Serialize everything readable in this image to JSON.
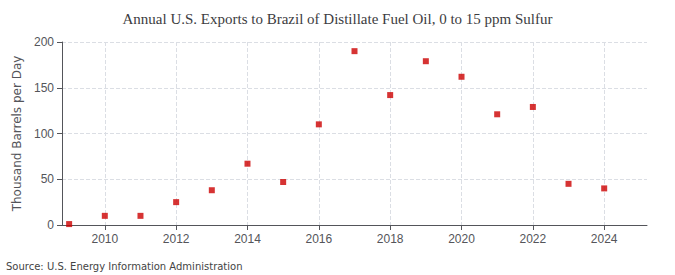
{
  "chart_data": {
    "type": "scatter",
    "title": "Annual U.S. Exports to Brazil of Distillate Fuel Oil, 0 to 15 ppm Sulfur",
    "ylabel": "Thousand Barrels per Day",
    "annotations": [
      "Source: U.S. Energy Information Administration"
    ],
    "x": [
      2009,
      2010,
      2011,
      2012,
      2013,
      2014,
      2015,
      2016,
      2017,
      2018,
      2019,
      2020,
      2021,
      2022,
      2023,
      2024
    ],
    "values": [
      1,
      10,
      10,
      25,
      38,
      67,
      47,
      110,
      190,
      142,
      179,
      162,
      121,
      129,
      45,
      40
    ],
    "color": "#cc0000",
    "marker": "square",
    "xlim": [
      2008.8,
      2025.2
    ],
    "xticks": [
      2010,
      2012,
      2014,
      2016,
      2018,
      2020,
      2022,
      2024
    ],
    "ylim": [
      0,
      200
    ],
    "yticks": [
      0,
      50,
      100,
      150,
      200
    ],
    "grid": true
  }
}
